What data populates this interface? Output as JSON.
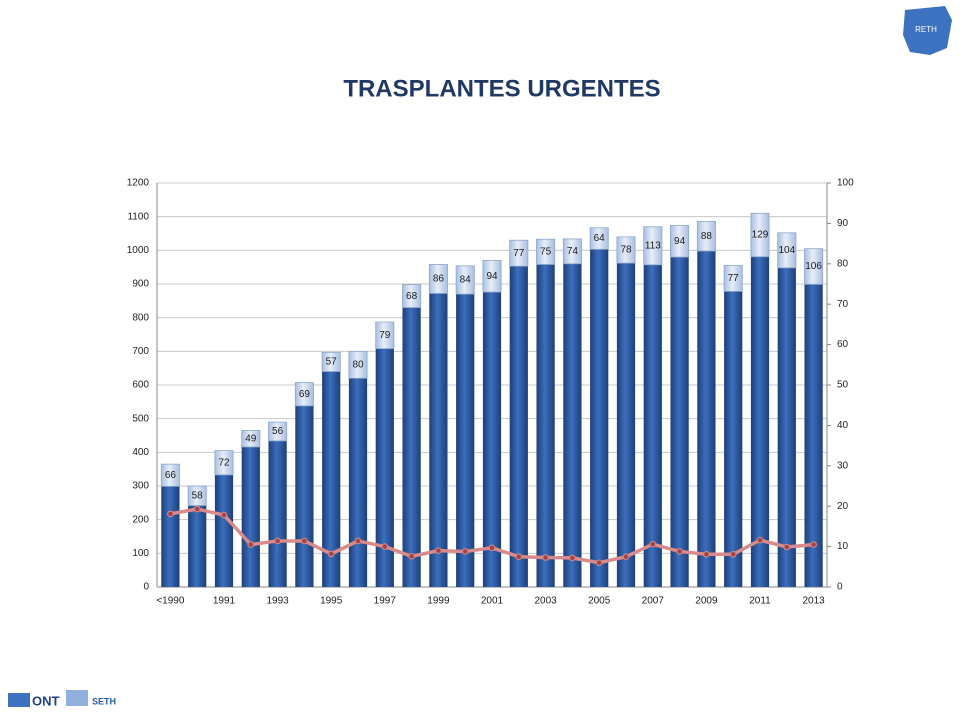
{
  "chart_data": {
    "type": "bar",
    "stacked": true,
    "title": "TRASPLANTES URGENTES",
    "categories": [
      "<1990",
      null,
      "1991",
      null,
      "1993",
      null,
      "1995",
      null,
      "1997",
      null,
      "1999",
      null,
      "2001",
      null,
      "2003",
      null,
      "2005",
      null,
      "2007",
      null,
      "2009",
      null,
      "2011",
      null,
      "2013"
    ],
    "series": [
      {
        "color": "#2d5ea6",
        "values": [
          299,
          242,
          333,
          416,
          434,
          538,
          640,
          620,
          708,
          830,
          872,
          870,
          876,
          953,
          958,
          960,
          1003,
          962,
          957,
          980,
          998,
          878,
          981,
          948,
          899
        ]
      },
      {
        "color": "#c9d8ee",
        "values": [
          66,
          58,
          72,
          49,
          56,
          69,
          57,
          80,
          79,
          68,
          86,
          84,
          94,
          77,
          75,
          74,
          64,
          78,
          113,
          94,
          88,
          77,
          129,
          104,
          106
        ]
      },
      {
        "type": "line",
        "axis": "y2",
        "color": "#d98a8a",
        "values": [
          18.1,
          19.3,
          17.8,
          10.5,
          11.4,
          11.4,
          8.2,
          11.4,
          10.0,
          7.6,
          9.0,
          8.8,
          9.7,
          7.5,
          7.3,
          7.2,
          6.0,
          7.5,
          10.6,
          8.8,
          8.1,
          8.1,
          11.6,
          9.9,
          10.5
        ]
      }
    ],
    "ylim": [
      0,
      1200
    ],
    "yticks": [
      0,
      100,
      200,
      300,
      400,
      500,
      600,
      700,
      800,
      900,
      1000,
      1100,
      1200
    ],
    "y2lim": [
      0,
      100
    ],
    "y2ticks": [
      0,
      10,
      20,
      30,
      40,
      50,
      60,
      70,
      80,
      90,
      100
    ],
    "grid": true
  },
  "logos": {
    "reth": "RETH",
    "ont": "ONT",
    "seth": "SETH"
  }
}
